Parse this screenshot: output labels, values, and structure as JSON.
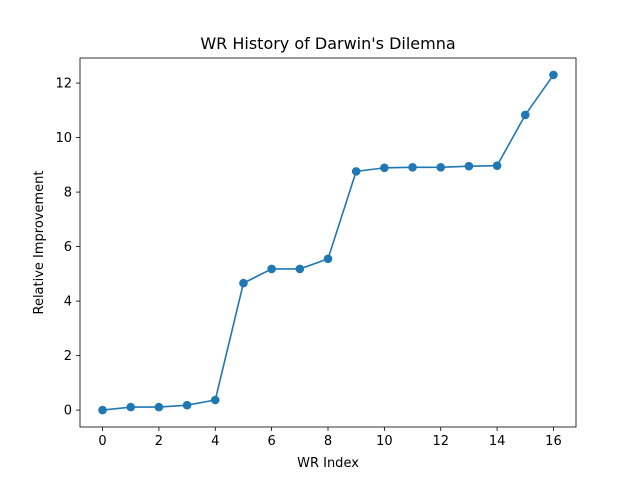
{
  "chart_data": {
    "type": "line",
    "title": "WR History of Darwin's Dilemna",
    "xlabel": "WR Index",
    "ylabel": "Relative Improvement",
    "xlim": [
      -0.8,
      16.8
    ],
    "ylim": [
      -0.62,
      12.92
    ],
    "xticks": [
      0,
      2,
      4,
      6,
      8,
      10,
      12,
      14,
      16
    ],
    "yticks": [
      0,
      2,
      4,
      6,
      8,
      10,
      12
    ],
    "grid": false,
    "series": [
      {
        "color": "#1f77b4",
        "marker": "circle",
        "x": [
          0,
          1,
          2,
          3,
          4,
          5,
          6,
          7,
          8,
          9,
          10,
          11,
          12,
          13,
          14,
          15,
          16
        ],
        "y": [
          0.0,
          0.11,
          0.11,
          0.18,
          0.37,
          4.66,
          5.18,
          5.18,
          5.55,
          8.76,
          8.89,
          8.91,
          8.91,
          8.95,
          8.97,
          10.83,
          12.3
        ]
      }
    ]
  }
}
